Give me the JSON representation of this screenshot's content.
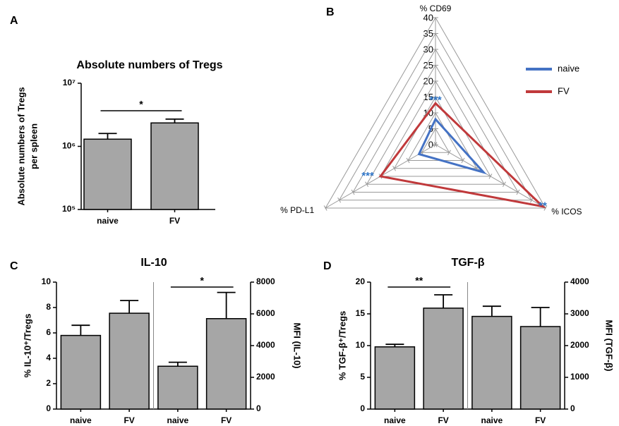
{
  "chart_data": [
    {
      "type": "bar",
      "panel": "A",
      "title": "Absolute numbers of Tregs",
      "y_label": [
        "Absolute numbers of Tregs",
        "per spleen"
      ],
      "categories": [
        "naive",
        "FV"
      ],
      "series": [
        {
          "values": [
            1300000,
            2350000
          ],
          "errors": [
            300000,
            350000
          ],
          "color": "#a6a6a6"
        }
      ],
      "log_y": true,
      "ylim": [
        100000,
        10000000
      ],
      "yticks": [
        {
          "value": 100000,
          "label": "10⁵"
        },
        {
          "value": 1000000,
          "label": "10⁶"
        },
        {
          "value": 10000000,
          "label": "10⁷"
        }
      ],
      "annotations": [
        {
          "text": "*",
          "series": 0,
          "from": 0,
          "to": 1
        }
      ]
    },
    {
      "type": "radar",
      "panel": "B",
      "axes": [
        {
          "label": "% CD69",
          "stars": "***"
        },
        {
          "label": "% ICOS",
          "stars": "**"
        },
        {
          "label": "% PD-L1",
          "stars": "***"
        }
      ],
      "series": [
        {
          "name": "naive",
          "color": "#4472c4",
          "values": [
            8,
            17.5,
            6
          ]
        },
        {
          "name": "FV",
          "color": "#c0393b",
          "values": [
            13,
            39,
            20
          ]
        }
      ],
      "ylim": [
        0,
        40
      ],
      "yticks": [
        0,
        5,
        10,
        15,
        20,
        25,
        30,
        35,
        40
      ],
      "star_color": "#2e75c8"
    },
    {
      "type": "bar",
      "panel": "C",
      "title": "IL-10",
      "y_label": [
        "% IL-10⁺/Tregs"
      ],
      "y2_label": "MFI (IL-10)",
      "categories": [
        "naive",
        "FV"
      ],
      "series": [
        {
          "values": [
            5.8,
            7.55
          ],
          "errors": [
            0.8,
            1.0
          ],
          "color": "#a6a6a6"
        },
        {
          "axis": "y2",
          "values": [
            2700,
            5700
          ],
          "errors": [
            250,
            1650
          ],
          "color": "#a6a6a6"
        }
      ],
      "ylim": [
        0,
        10
      ],
      "yticks": [
        0,
        2,
        4,
        6,
        8,
        10
      ],
      "y2lim": [
        0,
        8000
      ],
      "y2ticks": [
        0,
        2000,
        4000,
        6000,
        8000
      ],
      "annotations": [
        {
          "text": "*",
          "series": 1,
          "from": 0,
          "to": 1
        }
      ]
    },
    {
      "type": "bar",
      "panel": "D",
      "title": "TGF-β",
      "y_label": [
        "% TGF-β⁺/Tregs"
      ],
      "y2_label": "MFI (TGF-β)",
      "categories": [
        "naive",
        "FV"
      ],
      "series": [
        {
          "values": [
            9.8,
            15.9
          ],
          "errors": [
            0.4,
            2.1
          ],
          "color": "#a6a6a6"
        },
        {
          "axis": "y2",
          "values": [
            2920,
            2600
          ],
          "errors": [
            320,
            600
          ],
          "color": "#a6a6a6"
        }
      ],
      "ylim": [
        0,
        20
      ],
      "yticks": [
        0,
        5,
        10,
        15,
        20
      ],
      "y2lim": [
        0,
        4000
      ],
      "y2ticks": [
        0,
        1000,
        2000,
        3000,
        4000
      ],
      "annotations": [
        {
          "text": "**",
          "series": 0,
          "from": 0,
          "to": 1
        }
      ]
    }
  ]
}
